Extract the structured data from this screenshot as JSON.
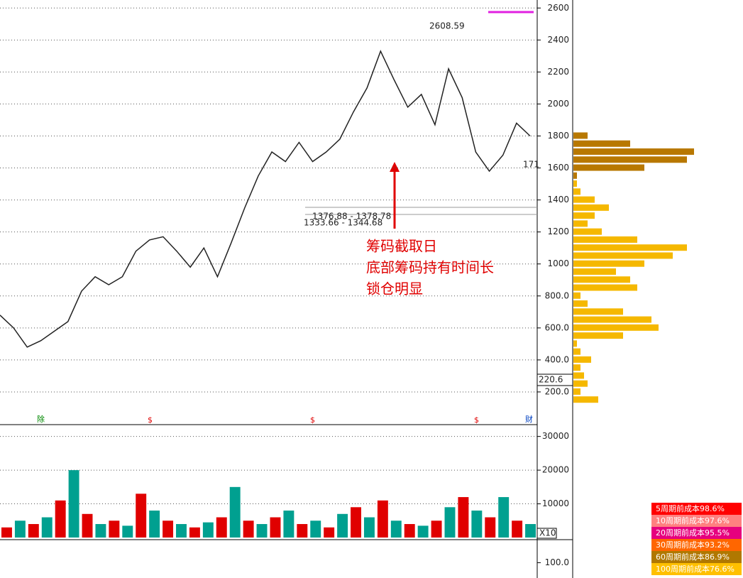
{
  "chart_data": {
    "type": "stock",
    "price": {
      "name": "收盘",
      "color": "#222",
      "values": [
        680,
        600,
        480,
        520,
        580,
        640,
        830,
        920,
        870,
        920,
        1080,
        1150,
        1170,
        1080,
        980,
        1100,
        920,
        1130,
        1350,
        1550,
        1700,
        1640,
        1760,
        1640,
        1700,
        1780,
        1950,
        2100,
        2330,
        2150,
        1980,
        2060,
        1870,
        2220,
        2040,
        1700,
        1580,
        1680,
        1880,
        1800
      ],
      "ylim": [
        0,
        2650
      ],
      "yticks": [
        {
          "value": 200,
          "label": "200.0"
        },
        {
          "value": 400,
          "label": "400.0"
        },
        {
          "value": 600,
          "label": "600.0"
        },
        {
          "value": 800,
          "label": "800.0"
        },
        1000,
        1200,
        1400,
        1600,
        1800,
        2000,
        2200,
        2400,
        2600
      ],
      "grid": true
    },
    "volume": {
      "up_color": "#e00000",
      "down_color": "#00a090",
      "values": [
        3000,
        5000,
        4000,
        6000,
        11000,
        20000,
        7000,
        4000,
        5000,
        3500,
        13000,
        8000,
        5000,
        4000,
        3000,
        4500,
        6000,
        15000,
        5000,
        4000,
        6000,
        8000,
        4000,
        5000,
        3000,
        7000,
        9000,
        6000,
        11000,
        5000,
        4000,
        3500,
        5000,
        9000,
        12000,
        8000,
        6000,
        12000,
        5000,
        4000
      ],
      "ylim": [
        0,
        33300
      ],
      "yticks": [
        10000,
        20000,
        30000
      ],
      "grid": true
    },
    "indicator": {
      "ylim": [
        60,
        160
      ],
      "yticks": [
        {
          "value": 100,
          "label": "100.0"
        }
      ]
    },
    "chips": {
      "prices": [
        150,
        200,
        250,
        300,
        350,
        400,
        450,
        500,
        550,
        600,
        650,
        700,
        750,
        800,
        850,
        900,
        950,
        1000,
        1050,
        1100,
        1150,
        1200,
        1250,
        1300,
        1350,
        1400,
        1450,
        1500
      ],
      "values": [
        35,
        10,
        20,
        15,
        10,
        25,
        10,
        5,
        70,
        120,
        110,
        70,
        20,
        10,
        90,
        80,
        60,
        100,
        140,
        160,
        90,
        40,
        20,
        30,
        50,
        30,
        10,
        5
      ],
      "color": "#f5b800",
      "recent_prices": [
        1550,
        1600,
        1650,
        1700,
        1750,
        1800
      ],
      "recent_values": [
        5,
        100,
        160,
        170,
        80,
        20
      ],
      "recent_color": "#b87800"
    },
    "annotations": {
      "high": "2608.59",
      "range1": "1376.88 - 1378.78",
      "range2": "1333.66 - 1344.68",
      "last": "171",
      "low_box": "220.6",
      "vol_scale": "X10",
      "note": [
        "筹码截取日",
        "底部筹码持有时间长",
        "锁仓明显"
      ],
      "markers": [
        "除",
        "$",
        "$",
        "$",
        "财"
      ]
    },
    "legend": [
      {
        "label": "5周期前成本98.6%",
        "color": "#ff0000"
      },
      {
        "label": "10周期前成本97.6%",
        "color": "#ff8080"
      },
      {
        "label": "20周期前成本95.5%",
        "color": "#e6007e"
      },
      {
        "label": "30周期前成本93.2%",
        "color": "#ff6600"
      },
      {
        "label": "60周期前成本86.9%",
        "color": "#b07800"
      },
      {
        "label": "100周期前成本76.6%",
        "color": "#ffc000"
      }
    ]
  }
}
